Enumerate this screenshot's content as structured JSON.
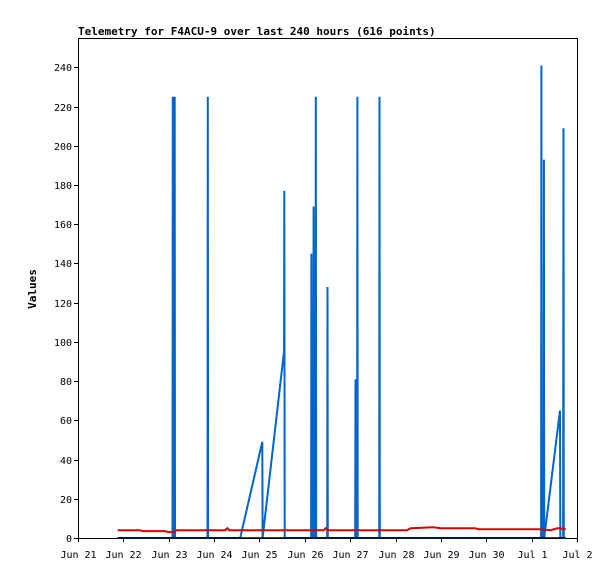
{
  "chart_data": {
    "type": "line",
    "title": "Telemetry for F4ACU-9 over last 240 hours (616 points)",
    "xlabel": "",
    "ylabel": "Values",
    "ylim": [
      0,
      255
    ],
    "xlim": [
      "Jun 21 00:00",
      "Jul 2 00:00"
    ],
    "y_ticks": [
      0,
      20,
      40,
      60,
      80,
      100,
      120,
      140,
      160,
      180,
      200,
      220,
      240
    ],
    "x_ticks": [
      "Jun 21",
      "Jun 22",
      "Jun 23",
      "Jun 24",
      "Jun 25",
      "Jun 26",
      "Jun 27",
      "Jun 28",
      "Jun 29",
      "Jun 30",
      "Jul 1",
      "Jul 2"
    ],
    "grid": false,
    "series": [
      {
        "color": "#0066cc",
        "points": [
          [
            "Jun 21 21:00",
            0
          ],
          [
            "Jun 23 02:00",
            0
          ],
          [
            "Jun 23 02:10",
            225
          ],
          [
            "Jun 23 02:20",
            0
          ],
          [
            "Jun 23 03:00",
            0
          ],
          [
            "Jun 23 03:10",
            225
          ],
          [
            "Jun 23 03:20",
            0
          ],
          [
            "Jun 23 20:30",
            0
          ],
          [
            "Jun 23 20:40",
            225
          ],
          [
            "Jun 23 20:50",
            0
          ],
          [
            "Jun 24 13:50",
            0
          ],
          [
            "Jun 25 01:30",
            49
          ],
          [
            "Jun 25 01:40",
            0
          ],
          [
            "Jun 25 13:00",
            95
          ],
          [
            "Jun 25 13:10",
            177
          ],
          [
            "Jun 25 13:20",
            0
          ],
          [
            "Jun 26 03:20",
            0
          ],
          [
            "Jun 26 03:30",
            145
          ],
          [
            "Jun 26 03:40",
            0
          ],
          [
            "Jun 26 04:30",
            0
          ],
          [
            "Jun 26 04:40",
            169
          ],
          [
            "Jun 26 04:50",
            0
          ],
          [
            "Jun 26 05:40",
            0
          ],
          [
            "Jun 26 05:50",
            225
          ],
          [
            "Jun 26 06:00",
            0
          ],
          [
            "Jun 26 11:50",
            0
          ],
          [
            "Jun 26 12:00",
            128
          ],
          [
            "Jun 26 12:10",
            0
          ],
          [
            "Jun 27 02:40",
            0
          ],
          [
            "Jun 27 02:50",
            81
          ],
          [
            "Jun 27 03:00",
            0
          ],
          [
            "Jun 27 03:40",
            0
          ],
          [
            "Jun 27 03:50",
            225
          ],
          [
            "Jun 27 04:00",
            0
          ],
          [
            "Jun 27 15:20",
            0
          ],
          [
            "Jun 27 15:30",
            225
          ],
          [
            "Jun 27 15:40",
            0
          ],
          [
            "Jul 1 05:00",
            0
          ],
          [
            "Jul 1 05:10",
            241
          ],
          [
            "Jul 1 05:20",
            0
          ],
          [
            "Jul 1 06:20",
            0
          ],
          [
            "Jul 1 06:30",
            193
          ],
          [
            "Jul 1 06:40",
            0
          ],
          [
            "Jul 1 15:00",
            65
          ],
          [
            "Jul 1 15:10",
            0
          ],
          [
            "Jul 1 16:40",
            0
          ],
          [
            "Jul 1 16:50",
            209
          ],
          [
            "Jul 1 17:00",
            0
          ],
          [
            "Jul 1 18:00",
            0
          ]
        ]
      },
      {
        "color": "#dd0000",
        "points": [
          [
            "Jun 21 21:00",
            4
          ],
          [
            "Jun 22 09:00",
            4
          ],
          [
            "Jun 22 10:00",
            3.5
          ],
          [
            "Jun 22 22:00",
            3.5
          ],
          [
            "Jun 23 00:00",
            3
          ],
          [
            "Jun 23 03:00",
            3
          ],
          [
            "Jun 23 04:00",
            4
          ],
          [
            "Jun 24 06:00",
            4
          ],
          [
            "Jun 24 07:00",
            5
          ],
          [
            "Jun 24 08:00",
            4
          ],
          [
            "Jun 25 12:00",
            4
          ],
          [
            "Jun 26 10:00",
            4
          ],
          [
            "Jun 26 11:00",
            5
          ],
          [
            "Jun 26 12:00",
            4
          ],
          [
            "Jun 27 18:00",
            4
          ],
          [
            "Jun 28 06:00",
            4
          ],
          [
            "Jun 28 08:00",
            5
          ],
          [
            "Jun 28 20:00",
            5.5
          ],
          [
            "Jun 29 00:00",
            5
          ],
          [
            "Jun 29 18:00",
            5
          ],
          [
            "Jun 29 20:00",
            4.5
          ],
          [
            "Jun 30 18:00",
            4.5
          ],
          [
            "Jul 1 04:00",
            4.5
          ],
          [
            "Jul 1 10:00",
            4
          ],
          [
            "Jul 1 14:00",
            5
          ],
          [
            "Jul 1 18:00",
            4.5
          ]
        ]
      },
      {
        "color": "#000000",
        "points": [
          [
            "Jun 21 21:00",
            0
          ],
          [
            "Jul 1 18:00",
            0
          ]
        ]
      }
    ]
  }
}
